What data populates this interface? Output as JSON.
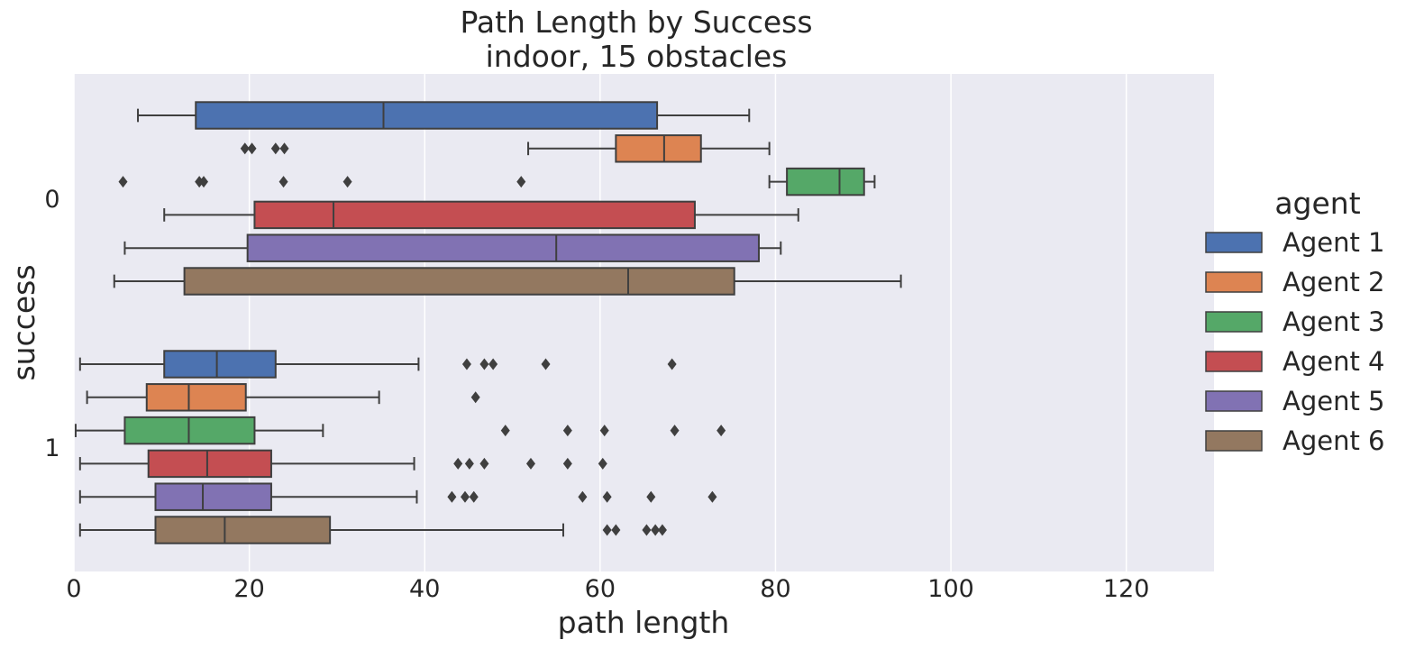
{
  "chart_data": {
    "type": "boxplot",
    "orientation": "horizontal",
    "title": "Path Length by Success",
    "subtitle": "indoor, 15 obstacles",
    "xlabel": "path length",
    "ylabel": "success",
    "xlim": [
      0,
      130
    ],
    "xticks": [
      0,
      20,
      40,
      60,
      80,
      100,
      120
    ],
    "categories": [
      "0",
      "1"
    ],
    "grid": true,
    "legend": {
      "title": "agent",
      "placement": "right"
    },
    "series": [
      {
        "name": "Agent 1",
        "color": "#4c72b0",
        "groups": [
          {
            "category": "0",
            "whisker_low": 7.3,
            "q1": 13.9,
            "median": 35.3,
            "q3": 66.5,
            "whisker_high": 77.0,
            "outliers": []
          },
          {
            "category": "1",
            "whisker_low": 0.7,
            "q1": 10.3,
            "median": 16.3,
            "q3": 23.0,
            "whisker_high": 39.3,
            "outliers": [
              44.8,
              46.8,
              47.8,
              53.8,
              68.2
            ]
          }
        ]
      },
      {
        "name": "Agent 2",
        "color": "#dd8452",
        "groups": [
          {
            "category": "0",
            "whisker_low": 51.8,
            "q1": 61.8,
            "median": 67.3,
            "q3": 71.5,
            "whisker_high": 79.3,
            "outliers": [
              19.5,
              20.3,
              23.0,
              24.0
            ]
          },
          {
            "category": "1",
            "whisker_low": 1.5,
            "q1": 8.3,
            "median": 13.1,
            "q3": 19.6,
            "whisker_high": 34.8,
            "outliers": [
              45.8
            ]
          }
        ]
      },
      {
        "name": "Agent 3",
        "color": "#55a868",
        "groups": [
          {
            "category": "0",
            "whisker_low": 79.3,
            "q1": 81.3,
            "median": 87.3,
            "q3": 90.1,
            "whisker_high": 91.3,
            "outliers": [
              5.6,
              14.3,
              14.8,
              23.9,
              31.2,
              51.0
            ]
          },
          {
            "category": "1",
            "whisker_low": 0.2,
            "q1": 5.8,
            "median": 13.1,
            "q3": 20.6,
            "whisker_high": 28.4,
            "outliers": [
              49.2,
              56.3,
              60.5,
              68.5,
              73.8
            ]
          }
        ]
      },
      {
        "name": "Agent 4",
        "color": "#c44e52",
        "groups": [
          {
            "category": "0",
            "whisker_low": 10.3,
            "q1": 20.6,
            "median": 29.6,
            "q3": 70.8,
            "whisker_high": 82.6,
            "outliers": []
          },
          {
            "category": "1",
            "whisker_low": 0.7,
            "q1": 8.5,
            "median": 15.2,
            "q3": 22.5,
            "whisker_high": 38.8,
            "outliers": [
              43.8,
              45.1,
              46.8,
              52.1,
              56.3,
              60.3
            ]
          }
        ]
      },
      {
        "name": "Agent 5",
        "color": "#8172b3",
        "groups": [
          {
            "category": "0",
            "whisker_low": 5.8,
            "q1": 19.8,
            "median": 55.0,
            "q3": 78.1,
            "whisker_high": 80.6,
            "outliers": []
          },
          {
            "category": "1",
            "whisker_low": 0.7,
            "q1": 9.3,
            "median": 14.7,
            "q3": 22.5,
            "whisker_high": 39.1,
            "outliers": [
              43.1,
              44.6,
              45.6,
              58.0,
              60.8,
              65.8,
              72.8
            ]
          }
        ]
      },
      {
        "name": "Agent 6",
        "color": "#937860",
        "groups": [
          {
            "category": "0",
            "whisker_low": 4.6,
            "q1": 12.6,
            "median": 63.2,
            "q3": 75.3,
            "whisker_high": 94.3,
            "outliers": []
          },
          {
            "category": "1",
            "whisker_low": 0.7,
            "q1": 9.3,
            "median": 17.2,
            "q3": 29.2,
            "whisker_high": 55.8,
            "outliers": [
              60.8,
              61.8,
              65.3,
              66.3,
              67.1
            ]
          }
        ]
      }
    ]
  }
}
